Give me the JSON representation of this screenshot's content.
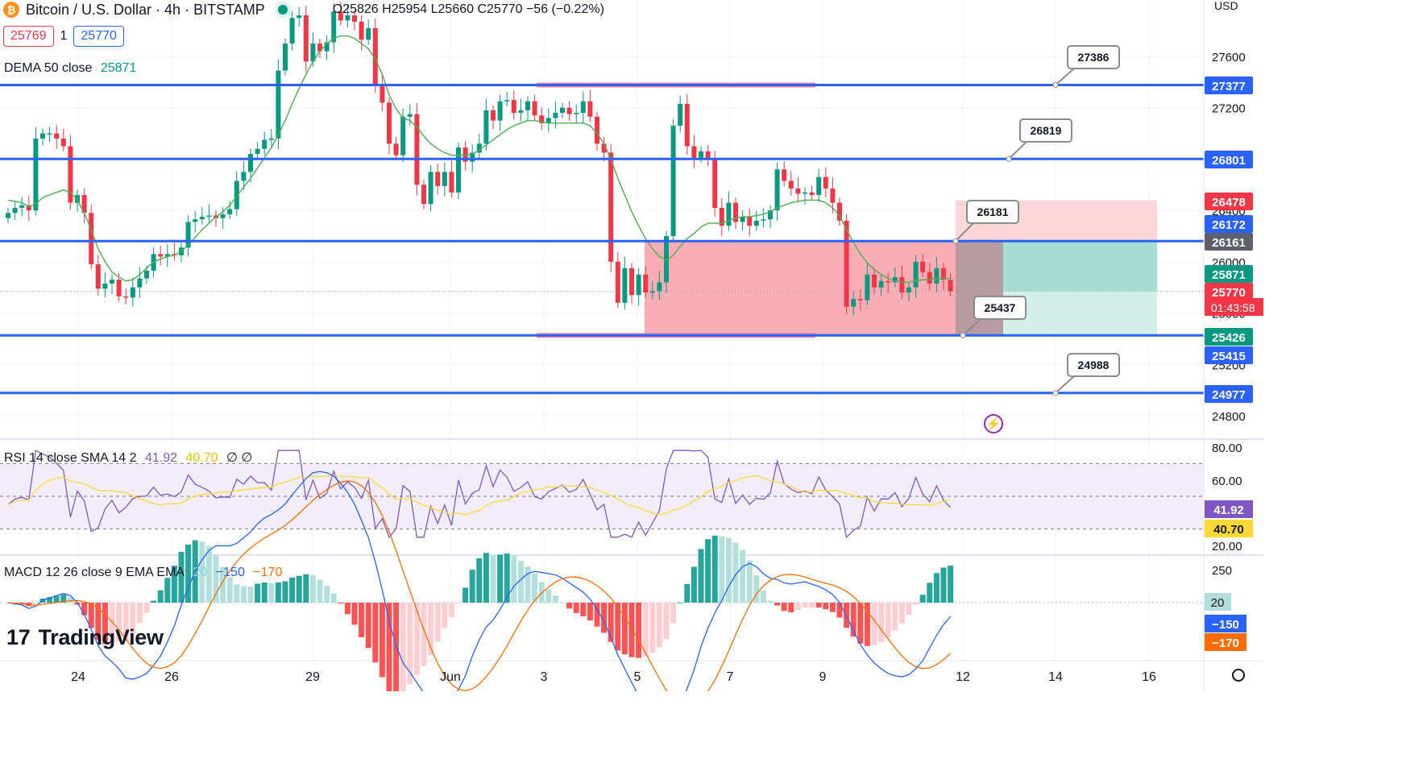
{
  "header": {
    "symbol_icon": "bitcoin-icon",
    "symbol_title": "Bitcoin / U.S. Dollar · 4h · BITSTAMP",
    "ohlc": "O25826 H25954 L25660 C25770 −56 (−0.22%)",
    "sell_price": "25769",
    "spread": "1",
    "buy_price": "25770",
    "currency": "USD"
  },
  "indicators": {
    "dema_label": "DEMA 50 close",
    "dema_value": "25871",
    "rsi_label": "RSI 14 close SMA 14 2",
    "rsi_value": "41.92",
    "rsi_sma_value": "40.70",
    "rsi_extra": "∅ ∅",
    "macd_label": "MACD 12 26 close 9 EMA EMA",
    "macd_hist": "20",
    "macd_line": "−150",
    "macd_signal": "−170"
  },
  "branding": {
    "logo_text": "TradingView",
    "logo_mark": "17"
  },
  "colors": {
    "up": "#089981",
    "down": "#f23645",
    "level": "#2962ff",
    "dema": "#4caf50",
    "rsi": "#7e57c2",
    "rsi_sma": "#fdd835",
    "macd": "#2962ff",
    "signal": "#ff6d00"
  },
  "chart_data": {
    "type": "candlestick",
    "title": "Bitcoin / U.S. Dollar · 4h · BITSTAMP",
    "y_axis": {
      "currency": "USD",
      "ticks": [
        24800,
        25200,
        25600,
        26000,
        26400,
        26800,
        27200,
        27600
      ],
      "ylim": [
        24700,
        27800
      ]
    },
    "x_axis": {
      "ticks": [
        "24",
        "26",
        "29",
        "Jun",
        "3",
        "5",
        "7",
        "9",
        "12",
        "14",
        "16"
      ]
    },
    "candles_close": [
      26380,
      26420,
      26440,
      26400,
      26960,
      27000,
      27000,
      26960,
      26900,
      26460,
      26520,
      26380,
      25980,
      25790,
      25830,
      25860,
      25730,
      25720,
      25800,
      25870,
      25930,
      26060,
      26040,
      26060,
      26050,
      26110,
      26310,
      26330,
      26350,
      26360,
      26340,
      26370,
      26410,
      26630,
      26700,
      26840,
      26880,
      26950,
      26960,
      27490,
      27700,
      27900,
      27920,
      27560,
      27700,
      27640,
      27710,
      27950,
      27880,
      27920,
      27870,
      27730,
      27820,
      27370,
      27240,
      26920,
      26830,
      27130,
      27150,
      26600,
      26450,
      26700,
      26590,
      26700,
      26540,
      26890,
      26780,
      26850,
      26920,
      27180,
      27100,
      27250,
      27260,
      27160,
      27180,
      27250,
      27140,
      27080,
      27120,
      27160,
      27200,
      27150,
      27160,
      27250,
      27130,
      26920,
      26850,
      26000,
      25680,
      25950,
      25740,
      25900,
      25760,
      25770,
      25840,
      26200,
      27060,
      27230,
      26900,
      26810,
      26860,
      26800,
      26420,
      26280,
      26460,
      26310,
      26350,
      26280,
      26320,
      26330,
      26400,
      26720,
      26630,
      26570,
      26530,
      26540,
      26520,
      26660,
      26570,
      26460,
      26320,
      25650,
      25710,
      25700,
      25900,
      25800,
      25850,
      25840,
      25880,
      25760,
      25800,
      26000,
      25920,
      25830,
      25950,
      25860,
      25770
    ],
    "dema_50": [
      26480,
      26470,
      26460,
      26430,
      26450,
      26500,
      26520,
      26540,
      26560,
      26540,
      26480,
      26380,
      26250,
      26100,
      26000,
      25920,
      25880,
      25850,
      25860,
      25900,
      25950,
      26000,
      26020,
      26040,
      26050,
      26080,
      26130,
      26190,
      26250,
      26300,
      26350,
      26390,
      26440,
      26510,
      26580,
      26650,
      26730,
      26810,
      26890,
      26990,
      27100,
      27230,
      27350,
      27460,
      27560,
      27640,
      27700,
      27740,
      27760,
      27760,
      27740,
      27700,
      27660,
      27580,
      27460,
      27300,
      27190,
      27120,
      27100,
      27050,
      26980,
      26920,
      26880,
      26850,
      26830,
      26830,
      26830,
      26840,
      26870,
      26910,
      26950,
      26990,
      27030,
      27060,
      27080,
      27100,
      27100,
      27090,
      27080,
      27080,
      27080,
      27080,
      27080,
      27080,
      27060,
      27000,
      26920,
      26800,
      26650,
      26520,
      26390,
      26280,
      26180,
      26100,
      26040,
      26010,
      26050,
      26120,
      26180,
      26220,
      26270,
      26300,
      26300,
      26300,
      26320,
      26340,
      26350,
      26350,
      26360,
      26370,
      26390,
      26420,
      26440,
      26460,
      26470,
      26480,
      26480,
      26480,
      26460,
      26420,
      26360,
      26250,
      26150,
      26060,
      25990,
      25940,
      25900,
      25870,
      25850,
      25840,
      25840,
      25850,
      25860,
      25860,
      25870,
      25870,
      25871
    ],
    "horizontal_levels": [
      27377,
      26801,
      26161,
      25426,
      24977
    ],
    "callouts": [
      "27386",
      "26819",
      "26181",
      "25437",
      "24988"
    ],
    "price_labels": [
      "27377",
      "26801",
      "26478",
      "26172",
      "26161",
      "25871",
      "25770",
      "25426",
      "25415",
      "24977"
    ],
    "countdown": "01:43:58",
    "rsi": {
      "ticks": [
        "80.00",
        "60.00",
        "20.00"
      ],
      "value": 41.92,
      "sma": 40.7
    },
    "macd": {
      "ticks": [
        "250"
      ],
      "histogram": 20,
      "macd": -150,
      "signal": -170
    }
  }
}
